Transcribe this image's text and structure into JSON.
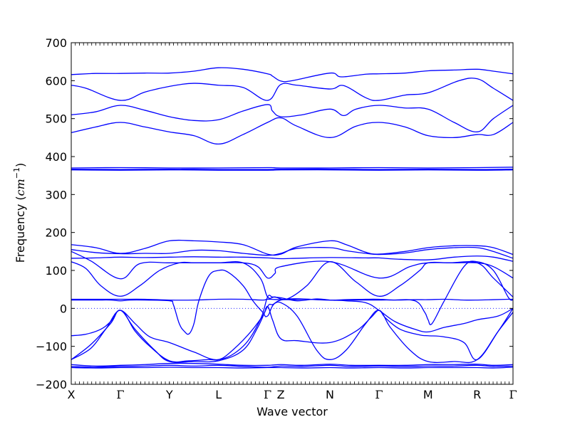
{
  "chart_data": {
    "type": "line",
    "title": "",
    "xlabel": "Wave vector",
    "ylabel_text": "Frequency",
    "ylabel_unit_open": "(",
    "ylabel_unit_base": "cm",
    "ylabel_unit_exp": "−1",
    "ylabel_unit_close": ")",
    "ylim": [
      -200,
      700
    ],
    "yticks": [
      -200,
      -100,
      0,
      100,
      200,
      300,
      400,
      500,
      600,
      700
    ],
    "xlim": [
      0,
      9
    ],
    "xticks": [
      {
        "pos": 0,
        "label": "X"
      },
      {
        "pos": 1,
        "label": "Γ"
      },
      {
        "pos": 2,
        "label": "Y"
      },
      {
        "pos": 3,
        "label": "L"
      },
      {
        "pos": 4,
        "label": "Γ"
      },
      {
        "pos": 4.27,
        "label": "Z"
      },
      {
        "pos": 5.27,
        "label": "N"
      },
      {
        "pos": 6.27,
        "label": "Γ"
      },
      {
        "pos": 7.27,
        "label": "M"
      },
      {
        "pos": 8.27,
        "label": "R"
      },
      {
        "pos": 9,
        "label": "Γ"
      }
    ],
    "zero_line": {
      "y": 0,
      "style": "dotted"
    },
    "grid": false,
    "legend": "none",
    "line_color": "#0000ff",
    "series": [
      {
        "x": [
          0,
          0.3,
          0.5,
          1,
          1.5,
          2,
          2.5,
          3,
          3.5,
          4,
          4.1,
          4.27,
          4.5,
          5.27,
          5.5,
          6,
          6.27,
          6.8,
          7.27,
          7.8,
          8.27,
          8.6,
          9
        ],
        "values": [
          616,
          618,
          619,
          619,
          620,
          620,
          625,
          634,
          630,
          618,
          612,
          599,
          600,
          620,
          610,
          617,
          618,
          620,
          626,
          628,
          630,
          625,
          618
        ]
      },
      {
        "x": [
          0,
          0.3,
          1,
          1.5,
          2,
          2.5,
          3,
          3.5,
          4,
          4.27,
          4.6,
          5.27,
          5.55,
          6,
          6.27,
          6.8,
          7.27,
          7.9,
          8.27,
          8.6,
          9
        ],
        "values": [
          588,
          580,
          548,
          570,
          585,
          593,
          588,
          582,
          548,
          590,
          588,
          578,
          587,
          555,
          548,
          562,
          568,
          600,
          605,
          580,
          548
        ]
      },
      {
        "x": [
          0,
          0.5,
          1,
          1.5,
          2,
          2.5,
          3,
          3.5,
          4,
          4.1,
          4.27,
          4.7,
          5.27,
          5.55,
          5.8,
          6.27,
          6.8,
          7.27,
          7.8,
          8.27,
          8.6,
          9
        ],
        "values": [
          510,
          518,
          535,
          522,
          505,
          495,
          497,
          520,
          537,
          520,
          505,
          510,
          525,
          508,
          525,
          535,
          528,
          525,
          490,
          465,
          500,
          535
        ]
      },
      {
        "x": [
          0,
          0.5,
          1,
          1.5,
          2,
          2.5,
          3,
          3.5,
          4,
          4.27,
          4.6,
          5.27,
          5.8,
          6.27,
          6.8,
          7.27,
          7.8,
          8.27,
          8.6,
          9
        ],
        "values": [
          463,
          478,
          490,
          478,
          465,
          455,
          433,
          458,
          490,
          502,
          480,
          450,
          480,
          490,
          478,
          455,
          450,
          458,
          458,
          490
        ]
      },
      {
        "x": [
          0,
          1,
          2,
          3,
          4,
          4.27,
          5.27,
          6.27,
          7.27,
          8.27,
          9
        ],
        "values": [
          370,
          371,
          370,
          370,
          371,
          370,
          370,
          371,
          370,
          371,
          372
        ]
      },
      {
        "x": [
          0,
          1,
          2,
          3,
          4,
          4.27,
          5.27,
          6.27,
          7.27,
          8.27,
          9
        ],
        "values": [
          367,
          366,
          367,
          366,
          366,
          367,
          367,
          366,
          367,
          366,
          367
        ]
      },
      {
        "x": [
          0,
          1,
          2,
          3,
          4,
          4.27,
          5.27,
          6.27,
          7.27,
          8.27,
          9
        ],
        "values": [
          365,
          364,
          365,
          364,
          364,
          365,
          365,
          364,
          365,
          364,
          365
        ]
      },
      {
        "x": [
          0,
          0.5,
          1,
          1.5,
          2,
          2.5,
          3,
          3.5,
          4,
          4.27,
          4.6,
          5.27,
          5.6,
          6,
          6.27,
          6.8,
          7.27,
          7.8,
          8.27,
          8.6,
          9
        ],
        "values": [
          168,
          160,
          145,
          158,
          178,
          178,
          175,
          168,
          143,
          143,
          162,
          178,
          168,
          148,
          143,
          150,
          160,
          165,
          165,
          160,
          142
        ]
      },
      {
        "x": [
          0,
          0.5,
          1,
          1.5,
          2,
          2.5,
          3,
          3.5,
          4,
          4.27,
          4.6,
          5.27,
          5.6,
          6,
          6.27,
          6.8,
          7.27,
          7.8,
          8.27,
          8.6,
          9
        ],
        "values": [
          155,
          147,
          144,
          145,
          145,
          153,
          152,
          145,
          140,
          145,
          158,
          160,
          152,
          145,
          142,
          146,
          155,
          160,
          160,
          150,
          132
        ]
      },
      {
        "x": [
          0,
          0.5,
          1,
          1.5,
          2,
          2.5,
          3,
          3.5,
          4,
          4.27,
          4.6,
          5.27,
          6,
          6.27,
          6.6,
          7.27,
          7.8,
          8.27,
          8.6,
          9
        ],
        "values": [
          132,
          133,
          135,
          134,
          135,
          136,
          135,
          135,
          133,
          131,
          132,
          134,
          133,
          133,
          130,
          128,
          135,
          138,
          135,
          124
        ]
      },
      {
        "x": [
          0,
          0.4,
          1,
          1.4,
          2,
          2.5,
          3,
          3.5,
          3.8,
          4,
          4.15,
          4.27,
          5.27,
          6.27,
          6.9,
          7.27,
          7.8,
          8.27,
          8.6,
          9
        ],
        "values": [
          150,
          125,
          78,
          118,
          120,
          120,
          120,
          120,
          110,
          80,
          92,
          110,
          123,
          80,
          110,
          120,
          120,
          120,
          110,
          80
        ]
      },
      {
        "x": [
          0,
          0.3,
          0.6,
          1,
          1.4,
          1.8,
          2.2,
          2.5,
          3,
          3.5,
          3.85,
          4,
          4.15,
          4.4,
          4.8,
          5.27,
          5.8,
          6.27,
          6.7,
          7.1,
          7.27,
          7.7,
          8.27,
          8.6,
          9
        ],
        "values": [
          123,
          105,
          60,
          32,
          60,
          100,
          120,
          120,
          120,
          120,
          80,
          30,
          30,
          25,
          60,
          123,
          70,
          32,
          60,
          100,
          120,
          120,
          120,
          80,
          30
        ]
      },
      {
        "x": [
          0,
          0.5,
          0.8,
          1,
          1.2,
          1.5,
          2,
          2.08,
          2.2,
          2.3,
          2.4,
          2.5,
          2.6,
          2.8,
          3,
          3.2,
          3.5,
          3.7,
          3.9,
          4,
          4.27,
          5.27,
          6.27,
          6.5,
          7,
          7.2,
          7.27,
          7.35,
          7.6,
          8,
          8.27,
          8.6,
          8.9,
          9
        ],
        "values": [
          22,
          22,
          22,
          20,
          22,
          22,
          20,
          10,
          -40,
          -60,
          -67,
          -40,
          20,
          85,
          100,
          95,
          60,
          20,
          -10,
          -20,
          22,
          22,
          22,
          22,
          20,
          -10,
          -30,
          -40,
          20,
          110,
          123,
          100,
          30,
          22
        ]
      },
      {
        "x": [
          0,
          0.5,
          1,
          1.5,
          2,
          2.5,
          3,
          3.5,
          3.9,
          4,
          4.27,
          4.5,
          4.8,
          5.27,
          5.6,
          6,
          6.27,
          6.6,
          7,
          7.27,
          7.6,
          8,
          8.27,
          8.6,
          8.9,
          9
        ],
        "values": [
          24,
          24,
          24,
          24,
          22,
          22,
          24,
          24,
          22,
          24,
          23,
          23,
          24,
          22,
          23,
          24,
          24,
          22,
          23,
          23,
          24,
          22,
          22,
          23,
          24,
          24
        ]
      },
      {
        "x": [
          0,
          0.3,
          0.6,
          0.8,
          1,
          1.3,
          1.6,
          2,
          2.5,
          3,
          3.5,
          3.85,
          4,
          4.1,
          4.27,
          4.6,
          5,
          5.27,
          5.6,
          6,
          6.27,
          6.6,
          7,
          7.27,
          7.6,
          8,
          8.27,
          8.7,
          9
        ],
        "values": [
          -72,
          -68,
          -55,
          -35,
          -5,
          -40,
          -75,
          -90,
          -115,
          -135,
          -100,
          -30,
          30,
          30,
          28,
          20,
          25,
          22,
          20,
          15,
          -5,
          -35,
          -55,
          -62,
          -50,
          -40,
          -30,
          -20,
          0
        ]
      },
      {
        "x": [
          0,
          0.4,
          0.7,
          1,
          1.3,
          1.6,
          2,
          2.4,
          2.8,
          3,
          3.2,
          3.6,
          3.9,
          4,
          4.1,
          4.27,
          4.6,
          5.27,
          5.8,
          6.1,
          6.27,
          6.4,
          6.7,
          7.1,
          7.27,
          7.6,
          8,
          8.27,
          8.7,
          9
        ],
        "values": [
          -135,
          -105,
          -55,
          -5,
          -60,
          -100,
          -138,
          -138,
          -135,
          -135,
          -120,
          -70,
          -20,
          5,
          -30,
          -80,
          -85,
          -90,
          -60,
          -25,
          -5,
          -25,
          -55,
          -70,
          -72,
          -75,
          -90,
          -135,
          -60,
          0
        ]
      },
      {
        "x": [
          0,
          0.4,
          0.8,
          1,
          1.3,
          1.7,
          2,
          2.5,
          3,
          3.5,
          3.8,
          4,
          4.1,
          4.27,
          4.6,
          5,
          5.27,
          5.6,
          6,
          6.27,
          6.5,
          6.9,
          7.27,
          7.8,
          8.27,
          8.7,
          9
        ],
        "values": [
          -135,
          -95,
          -40,
          -5,
          -55,
          -110,
          -140,
          -140,
          -138,
          -110,
          -50,
          5,
          10,
          15,
          -20,
          -110,
          -135,
          -110,
          -40,
          -5,
          -50,
          -110,
          -140,
          -140,
          -135,
          -60,
          -10
        ]
      },
      {
        "x": [
          0,
          0.5,
          1,
          1.5,
          2,
          2.5,
          3,
          3.5,
          4,
          4.27,
          4.7,
          5.27,
          5.7,
          6.27,
          6.8,
          7.27,
          7.8,
          8.27,
          8.6,
          9
        ],
        "values": [
          -148,
          -152,
          -150,
          -148,
          -145,
          -145,
          -147,
          -150,
          -150,
          -148,
          -150,
          -147,
          -150,
          -150,
          -150,
          -148,
          -148,
          -147,
          -150,
          -148
        ]
      },
      {
        "x": [
          0,
          0.5,
          1,
          1.5,
          2,
          2.5,
          3,
          3.5,
          4,
          4.27,
          4.7,
          5.27,
          5.7,
          6.27,
          6.8,
          7.27,
          7.8,
          8.27,
          8.6,
          9
        ],
        "values": [
          -153,
          -155,
          -153,
          -152,
          -150,
          -152,
          -150,
          -153,
          -155,
          -152,
          -153,
          -150,
          -153,
          -152,
          -153,
          -152,
          -152,
          -150,
          -153,
          -152
        ]
      },
      {
        "x": [
          0,
          0.5,
          1,
          1.5,
          2,
          2.5,
          3,
          3.5,
          4,
          4.27,
          4.7,
          5.27,
          5.7,
          6.27,
          6.8,
          7.27,
          7.8,
          8.27,
          8.6,
          9
        ],
        "values": [
          -156,
          -157,
          -156,
          -156,
          -155,
          -156,
          -156,
          -157,
          -156,
          -156,
          -157,
          -156,
          -157,
          -156,
          -157,
          -156,
          -156,
          -156,
          -157,
          -155
        ]
      }
    ]
  }
}
